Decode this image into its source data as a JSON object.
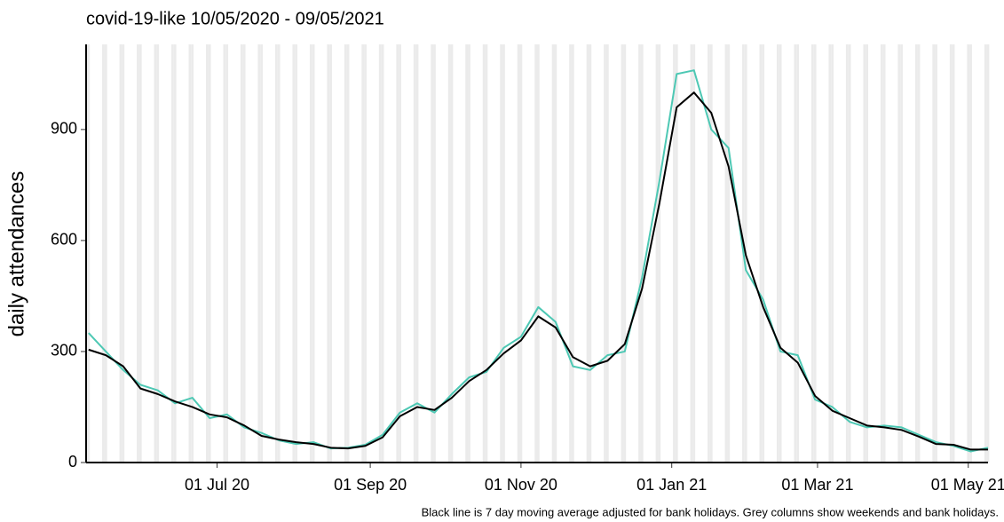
{
  "chart_data": {
    "type": "line",
    "title": "covid-19-like 10/05/2020 - 09/05/2021",
    "y_label": "daily attendances",
    "caption": "Black line is 7 day moving average adjusted for bank holidays. Grey columns show weekends and bank holidays.",
    "x": [
      "2020-05-10",
      "2020-05-17",
      "2020-05-24",
      "2020-05-31",
      "2020-06-07",
      "2020-06-14",
      "2020-06-21",
      "2020-06-28",
      "2020-07-05",
      "2020-07-12",
      "2020-07-19",
      "2020-07-26",
      "2020-08-02",
      "2020-08-09",
      "2020-08-16",
      "2020-08-23",
      "2020-08-30",
      "2020-09-06",
      "2020-09-13",
      "2020-09-20",
      "2020-09-27",
      "2020-10-04",
      "2020-10-11",
      "2020-10-18",
      "2020-10-25",
      "2020-11-01",
      "2020-11-08",
      "2020-11-15",
      "2020-11-22",
      "2020-11-29",
      "2020-12-06",
      "2020-12-13",
      "2020-12-20",
      "2020-12-27",
      "2021-01-03",
      "2021-01-10",
      "2021-01-17",
      "2021-01-24",
      "2021-01-31",
      "2021-02-07",
      "2021-02-14",
      "2021-02-21",
      "2021-02-28",
      "2021-03-07",
      "2021-03-14",
      "2021-03-21",
      "2021-03-28",
      "2021-04-04",
      "2021-04-11",
      "2021-04-18",
      "2021-04-25",
      "2021-05-02",
      "2021-05-09"
    ],
    "series": [
      {
        "color": "#4dc8b4",
        "values": [
          350,
          300,
          250,
          210,
          195,
          160,
          175,
          120,
          130,
          95,
          80,
          60,
          50,
          55,
          38,
          40,
          48,
          75,
          135,
          160,
          135,
          185,
          230,
          245,
          310,
          340,
          420,
          380,
          260,
          250,
          290,
          300,
          500,
          760,
          1050,
          1060,
          900,
          850,
          520,
          440,
          300,
          290,
          170,
          150,
          110,
          95,
          100,
          95,
          75,
          55,
          45,
          30,
          40
        ]
      },
      {
        "color": "#000000",
        "values": [
          305,
          290,
          260,
          200,
          185,
          165,
          150,
          130,
          122,
          100,
          72,
          62,
          55,
          50,
          40,
          38,
          45,
          68,
          125,
          150,
          142,
          175,
          220,
          250,
          295,
          330,
          395,
          365,
          285,
          260,
          275,
          320,
          470,
          700,
          960,
          1000,
          945,
          800,
          560,
          420,
          310,
          270,
          180,
          140,
          120,
          100,
          95,
          88,
          70,
          50,
          48,
          35,
          35
        ]
      }
    ],
    "xlim": [
      "2020-05-09",
      "2021-05-09"
    ],
    "xticks": [
      {
        "value": "2020-07-01",
        "label": "01 Jul 20"
      },
      {
        "value": "2020-09-01",
        "label": "01 Sep 20"
      },
      {
        "value": "2020-11-01",
        "label": "01 Nov 20"
      },
      {
        "value": "2021-01-01",
        "label": "01 Jan 21"
      },
      {
        "value": "2021-03-01",
        "label": "01 Mar 21"
      },
      {
        "value": "2021-05-01",
        "label": "01 May 21"
      }
    ],
    "ylim": [
      0,
      1130
    ],
    "yticks": [
      0,
      300,
      600,
      900
    ],
    "weekend_shading": true
  }
}
